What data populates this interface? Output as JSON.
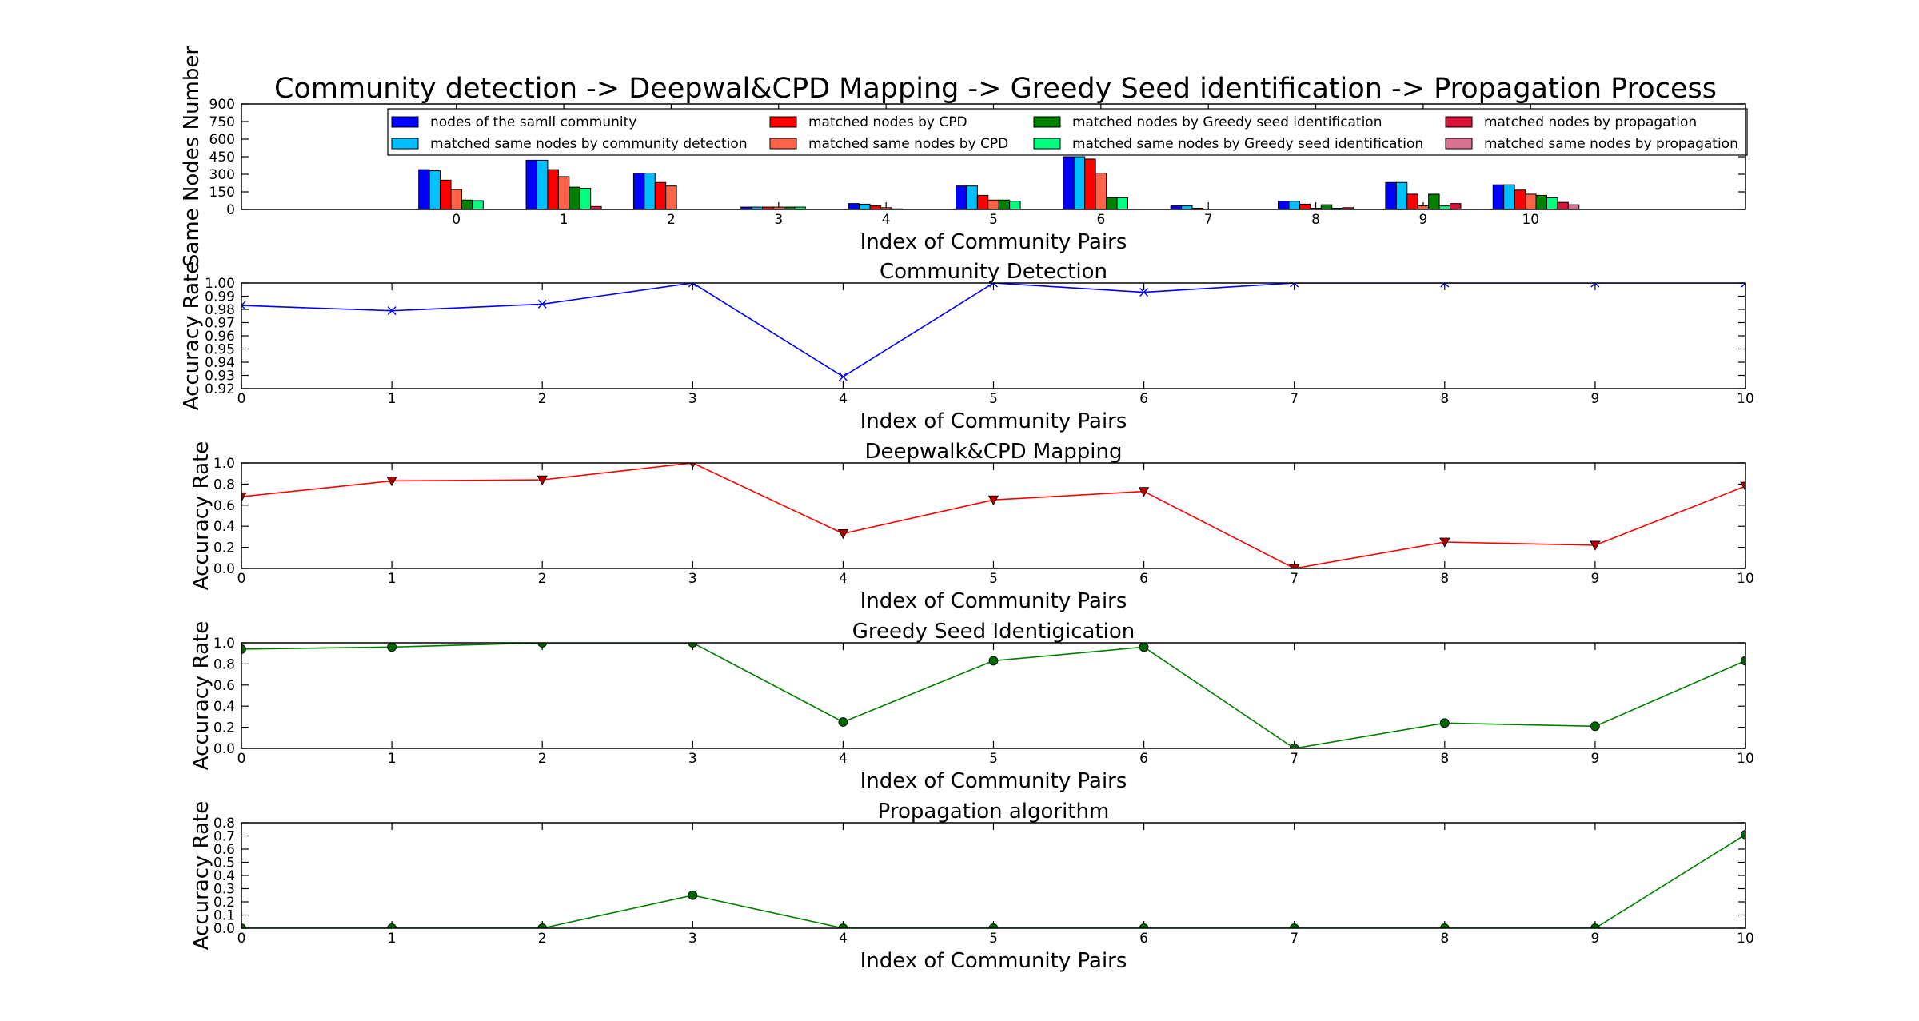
{
  "figure": {
    "suptitle": "Community detection -> Deepwal&CPD Mapping -> Greedy Seed identification -> Propagation Process"
  },
  "chart_data": [
    {
      "type": "bar",
      "title": "",
      "xlabel": "Index of Community Pairs",
      "ylabel": "Same Nodes Number",
      "ylim": [
        0,
        900
      ],
      "yticks": [
        0,
        150,
        300,
        450,
        600,
        750,
        900
      ],
      "xlim": [
        -2,
        12
      ],
      "categories": [
        "0",
        "1",
        "2",
        "3",
        "4",
        "5",
        "6",
        "7",
        "8",
        "9",
        "10"
      ],
      "legend_position": "top-center",
      "legend_columns": 4,
      "series": [
        {
          "name": "nodes of the samll community",
          "color": "#0000ff",
          "values": [
            340,
            420,
            310,
            20,
            50,
            200,
            450,
            30,
            70,
            230,
            210
          ]
        },
        {
          "name": "matched same nodes by community detection",
          "color": "#00bfff",
          "values": [
            330,
            420,
            310,
            20,
            45,
            200,
            450,
            30,
            70,
            230,
            210
          ]
        },
        {
          "name": "matched nodes by CPD",
          "color": "#ff0000",
          "values": [
            250,
            340,
            230,
            20,
            30,
            120,
            430,
            10,
            45,
            130,
            165
          ]
        },
        {
          "name": "matched same nodes by CPD",
          "color": "#ff6347",
          "values": [
            170,
            280,
            200,
            20,
            15,
            80,
            310,
            0,
            10,
            30,
            130
          ]
        },
        {
          "name": "matched nodes by Greedy seed identification",
          "color": "#008000",
          "values": [
            80,
            190,
            0,
            20,
            5,
            80,
            100,
            0,
            40,
            130,
            120
          ]
        },
        {
          "name": "matched same nodes by Greedy seed identification",
          "color": "#00ff7f",
          "values": [
            75,
            180,
            0,
            20,
            0,
            70,
            100,
            0,
            10,
            30,
            100
          ]
        },
        {
          "name": "matched nodes by propagation",
          "color": "#dc143c",
          "values": [
            0,
            25,
            0,
            0,
            0,
            0,
            0,
            0,
            15,
            50,
            60
          ]
        },
        {
          "name": "matched same nodes by propagation",
          "color": "#db7093",
          "values": [
            0,
            0,
            0,
            0,
            0,
            0,
            0,
            0,
            0,
            0,
            40
          ]
        }
      ]
    },
    {
      "type": "line",
      "title": "Community Detection",
      "xlabel": "Index of Community Pairs",
      "ylabel": "Accuracy Rate",
      "xlim": [
        0,
        10
      ],
      "ylim": [
        0.92,
        1.0
      ],
      "yticks": [
        0.92,
        0.93,
        0.94,
        0.95,
        0.96,
        0.97,
        0.98,
        0.99,
        1.0
      ],
      "ytick_labels": [
        "0.92",
        "0.93",
        "0.94",
        "0.95",
        "0.96",
        "0.97",
        "0.98",
        "0.99",
        "1.00"
      ],
      "x": [
        0,
        1,
        2,
        3,
        4,
        5,
        6,
        7,
        8,
        9,
        10
      ],
      "series": [
        {
          "color": "#0000ff",
          "marker": "x",
          "values": [
            0.983,
            0.979,
            0.984,
            1.0,
            0.929,
            1.0,
            0.993,
            1.0,
            1.0,
            1.0,
            1.0
          ]
        }
      ]
    },
    {
      "type": "line",
      "title": "Deepwalk&CPD Mapping",
      "xlabel": "Index of Community Pairs",
      "ylabel": "Accuracy Rate",
      "xlim": [
        0,
        10
      ],
      "ylim": [
        0.0,
        1.0
      ],
      "yticks": [
        0.0,
        0.2,
        0.4,
        0.6,
        0.8,
        1.0
      ],
      "ytick_labels": [
        "0.0",
        "0.2",
        "0.4",
        "0.6",
        "0.8",
        "1.0"
      ],
      "x": [
        0,
        1,
        2,
        3,
        4,
        5,
        6,
        7,
        8,
        9,
        10
      ],
      "series": [
        {
          "color": "#ff0000",
          "marker": "triangle-down",
          "values": [
            0.68,
            0.83,
            0.84,
            1.0,
            0.33,
            0.65,
            0.73,
            0.0,
            0.25,
            0.22,
            0.78
          ]
        }
      ]
    },
    {
      "type": "line",
      "title": "Greedy Seed Identigication",
      "xlabel": "Index of Community Pairs",
      "ylabel": "Accuracy Rate",
      "xlim": [
        0,
        10
      ],
      "ylim": [
        0.0,
        1.0
      ],
      "yticks": [
        0.0,
        0.2,
        0.4,
        0.6,
        0.8,
        1.0
      ],
      "ytick_labels": [
        "0.0",
        "0.2",
        "0.4",
        "0.6",
        "0.8",
        "1.0"
      ],
      "x": [
        0,
        1,
        2,
        3,
        4,
        5,
        6,
        7,
        8,
        9,
        10
      ],
      "series": [
        {
          "color": "#008000",
          "marker": "circle",
          "values": [
            0.94,
            0.96,
            1.0,
            1.0,
            0.25,
            0.83,
            0.96,
            0.0,
            0.24,
            0.21,
            0.83
          ]
        }
      ]
    },
    {
      "type": "line",
      "title": "Propagation algorithm",
      "xlabel": "Index of Community Pairs",
      "ylabel": "Accuracy Rate",
      "xlim": [
        0,
        10
      ],
      "ylim": [
        0.0,
        0.8
      ],
      "yticks": [
        0.0,
        0.1,
        0.2,
        0.3,
        0.4,
        0.5,
        0.6,
        0.7,
        0.8
      ],
      "ytick_labels": [
        "0.0",
        "0.1",
        "0.2",
        "0.3",
        "0.4",
        "0.5",
        "0.6",
        "0.7",
        "0.8"
      ],
      "x": [
        0,
        1,
        2,
        3,
        4,
        5,
        6,
        7,
        8,
        9,
        10
      ],
      "series": [
        {
          "color": "#008000",
          "marker": "circle",
          "values": [
            0.0,
            0.0,
            0.0,
            0.25,
            0.0,
            0.0,
            0.0,
            0.0,
            0.0,
            0.0,
            0.71
          ]
        }
      ]
    }
  ]
}
